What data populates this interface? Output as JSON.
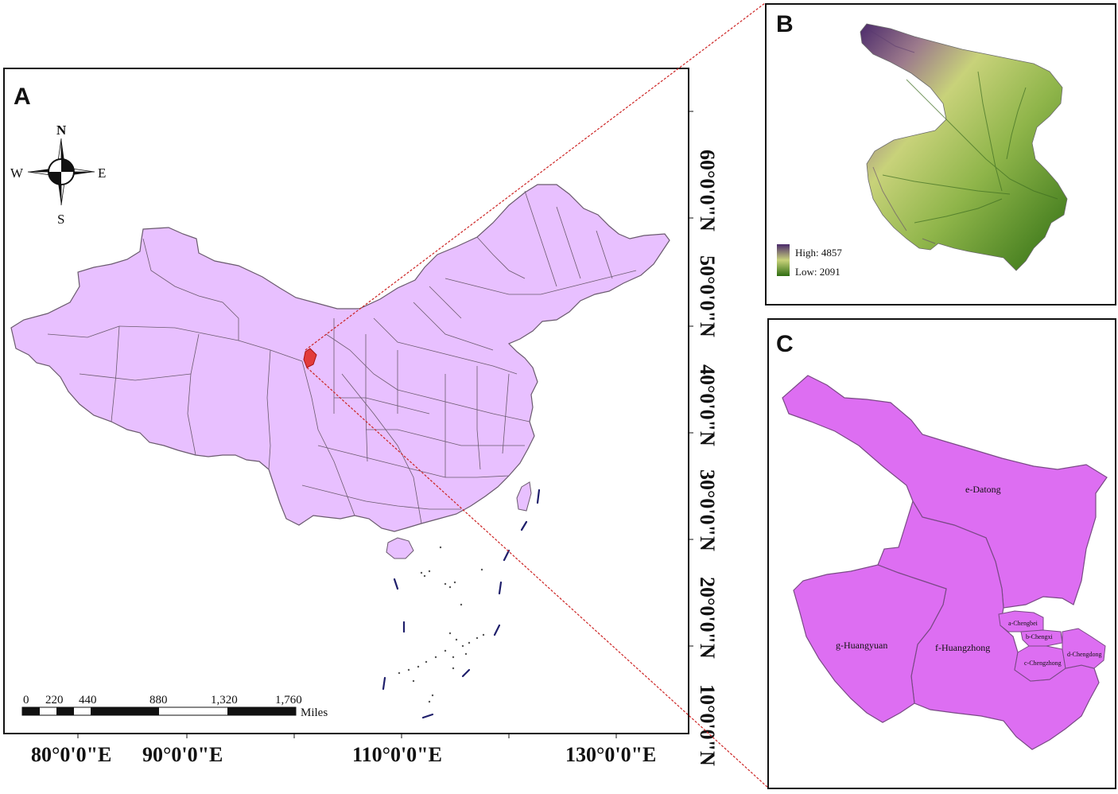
{
  "panels": {
    "a": {
      "letter": "A",
      "compass": {
        "n": "N",
        "s": "S",
        "e": "E",
        "w": "W"
      },
      "lat_labels": [
        "60°0'0\"N",
        "50°0'0\"N",
        "40°0'0\"N",
        "30°0'0\"N",
        "20°0'0\"N",
        "10°0'0\"N"
      ],
      "lon_labels": [
        "80°0'0\"E",
        "90°0'0\"E",
        "110°0'0\"E",
        "130°0'0\"E"
      ],
      "scale": {
        "ticks": [
          "0",
          "220",
          "440",
          "880",
          "1,320",
          "1,760"
        ],
        "unit": "Miles"
      },
      "colors": {
        "land": "#e8c0ff",
        "boundary": "#6a5a6e",
        "highlight": "#e23b3b",
        "connector": "#cc2222"
      }
    },
    "b": {
      "letter": "B",
      "legend": {
        "high": "High: 4857",
        "low": "Low: 2091"
      },
      "colors": {
        "high": "#4b2a6b",
        "mid": "#c8d27a",
        "low": "#2f6e12"
      }
    },
    "c": {
      "letter": "C",
      "districts": {
        "e": "e-Datong",
        "f": "f-Huangzhong",
        "g": "g-Huangyuan",
        "a": "a-Chengbei",
        "b": "b-Chengxi",
        "c": "c-Chengzhong",
        "d": "d-Chengdong"
      },
      "colors": {
        "fill": "#dd6ef2",
        "boundary": "#7a4a86"
      }
    }
  }
}
